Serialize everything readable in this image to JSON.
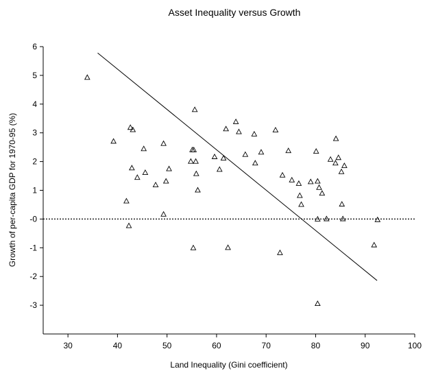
{
  "chart_data": {
    "type": "scatter",
    "title": "Asset Inequality versus Growth",
    "xlabel": "Land Inequality (Gini coefficient)",
    "ylabel": "Growth of per-capita GDP for 1970-95 (%)",
    "xlim": [
      25,
      100
    ],
    "ylim": [
      -4,
      6
    ],
    "x_ticks": [
      30,
      40,
      50,
      60,
      70,
      80,
      90,
      100
    ],
    "y_ticks": [
      6,
      5,
      4,
      3,
      2,
      1,
      0,
      -1,
      -2,
      -3
    ],
    "y_tick_labels": [
      "6",
      "5",
      "4",
      "3",
      "2",
      "1",
      "-0",
      "-1",
      "-2",
      "-3"
    ],
    "marker": "open-triangle",
    "grid": false,
    "legend": "none",
    "points": [
      {
        "x": 33.9,
        "y": 4.92
      },
      {
        "x": 39.2,
        "y": 2.7
      },
      {
        "x": 41.8,
        "y": 0.62
      },
      {
        "x": 42.3,
        "y": -0.24
      },
      {
        "x": 42.6,
        "y": 3.18
      },
      {
        "x": 42.9,
        "y": 1.77
      },
      {
        "x": 43.1,
        "y": 3.1
      },
      {
        "x": 44.0,
        "y": 1.44
      },
      {
        "x": 45.3,
        "y": 2.44
      },
      {
        "x": 45.6,
        "y": 1.61
      },
      {
        "x": 47.7,
        "y": 1.18
      },
      {
        "x": 49.3,
        "y": 2.62
      },
      {
        "x": 49.3,
        "y": 0.16
      },
      {
        "x": 49.8,
        "y": 1.31
      },
      {
        "x": 50.4,
        "y": 1.74
      },
      {
        "x": 54.8,
        "y": 2.0
      },
      {
        "x": 55.1,
        "y": 2.4
      },
      {
        "x": 55.3,
        "y": -1.01
      },
      {
        "x": 55.4,
        "y": 2.4
      },
      {
        "x": 55.6,
        "y": 3.8
      },
      {
        "x": 55.8,
        "y": 2.0
      },
      {
        "x": 55.9,
        "y": 1.57
      },
      {
        "x": 56.2,
        "y": 1.0
      },
      {
        "x": 59.6,
        "y": 2.16
      },
      {
        "x": 60.6,
        "y": 1.72
      },
      {
        "x": 61.4,
        "y": 2.11
      },
      {
        "x": 61.9,
        "y": 3.13
      },
      {
        "x": 62.3,
        "y": -1.0
      },
      {
        "x": 63.9,
        "y": 3.38
      },
      {
        "x": 64.5,
        "y": 3.03
      },
      {
        "x": 65.8,
        "y": 2.24
      },
      {
        "x": 67.6,
        "y": 2.95
      },
      {
        "x": 67.8,
        "y": 1.94
      },
      {
        "x": 69.0,
        "y": 2.32
      },
      {
        "x": 71.9,
        "y": 3.09
      },
      {
        "x": 72.8,
        "y": -1.18
      },
      {
        "x": 73.3,
        "y": 1.52
      },
      {
        "x": 74.5,
        "y": 2.37
      },
      {
        "x": 75.2,
        "y": 1.35
      },
      {
        "x": 76.6,
        "y": 1.23
      },
      {
        "x": 76.8,
        "y": 0.81
      },
      {
        "x": 77.1,
        "y": 0.5
      },
      {
        "x": 79.0,
        "y": 1.29
      },
      {
        "x": 80.1,
        "y": 2.35
      },
      {
        "x": 80.4,
        "y": 1.31
      },
      {
        "x": 80.4,
        "y": -0.01
      },
      {
        "x": 80.4,
        "y": -2.95
      },
      {
        "x": 80.7,
        "y": 1.09
      },
      {
        "x": 81.3,
        "y": 0.89
      },
      {
        "x": 82.2,
        "y": 0.0
      },
      {
        "x": 83.0,
        "y": 2.07
      },
      {
        "x": 84.0,
        "y": 1.94
      },
      {
        "x": 84.1,
        "y": 2.79
      },
      {
        "x": 84.6,
        "y": 2.13
      },
      {
        "x": 85.2,
        "y": 1.64
      },
      {
        "x": 85.3,
        "y": 0.51
      },
      {
        "x": 85.5,
        "y": 0.0
      },
      {
        "x": 85.8,
        "y": 1.85
      },
      {
        "x": 91.8,
        "y": -0.91
      },
      {
        "x": 92.5,
        "y": -0.03
      }
    ],
    "fit_line": {
      "x": [
        36.0,
        92.4
      ],
      "y": [
        5.78,
        -2.14
      ]
    },
    "reference_line": {
      "y": 0,
      "style": "dotted"
    }
  }
}
